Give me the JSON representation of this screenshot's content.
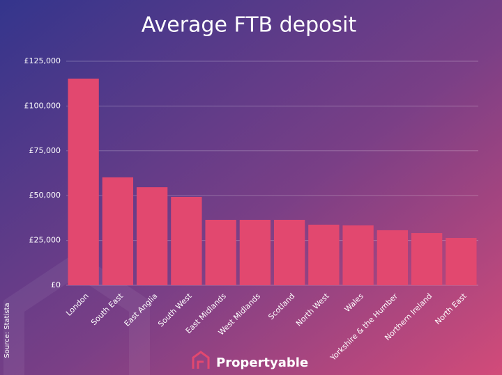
{
  "chart_data": {
    "type": "bar",
    "title": "Average FTB deposit",
    "categories": [
      "London",
      "South East",
      "East Anglia",
      "South West",
      "East Midlands",
      "West Midlands",
      "Scotland",
      "North West",
      "Wales",
      "Yorkshire & the Humber",
      "Northern Ireland",
      "North East"
    ],
    "values": [
      115300,
      60200,
      54700,
      49300,
      36500,
      36500,
      36500,
      33800,
      33400,
      30700,
      29100,
      26400
    ],
    "color": "#e2486f",
    "ylim": [
      0,
      125000
    ],
    "yticks": [
      {
        "value": 0,
        "label": "£0"
      },
      {
        "value": 25000,
        "label": "£25,000"
      },
      {
        "value": 50000,
        "label": "£50,000"
      },
      {
        "value": 75000,
        "label": "£75,000"
      },
      {
        "value": 100000,
        "label": "£100,000"
      },
      {
        "value": 125000,
        "label": "£125,000"
      }
    ],
    "grid": true,
    "source": "Source: Statista",
    "brand": "Propertyable"
  }
}
